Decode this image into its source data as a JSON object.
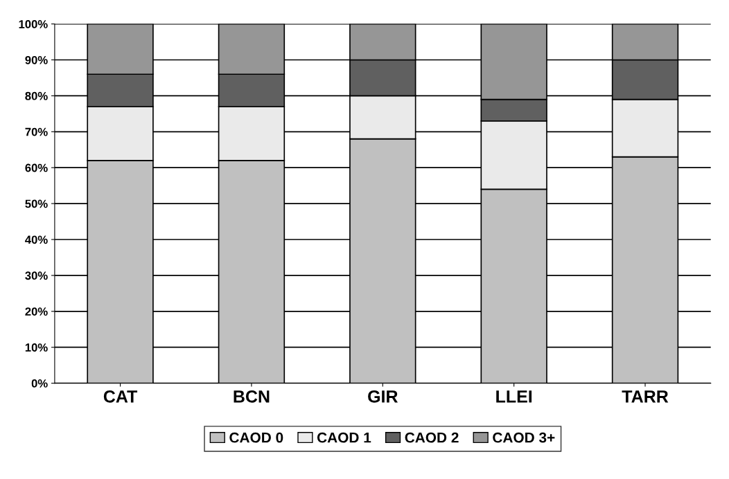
{
  "chart_data": {
    "type": "bar",
    "stacked": true,
    "categories": [
      "CAT",
      "BCN",
      "GIR",
      "LLEI",
      "TARR"
    ],
    "series": [
      {
        "name": "CAOD 0",
        "color": "#c0c0c0",
        "values": [
          62,
          62,
          68,
          54,
          63
        ]
      },
      {
        "name": "CAOD 1",
        "color": "#eaeaea",
        "values": [
          15,
          15,
          12,
          19,
          16
        ]
      },
      {
        "name": "CAOD 2",
        "color": "#606060",
        "values": [
          9,
          9,
          10,
          6,
          11
        ]
      },
      {
        "name": "CAOD 3+",
        "color": "#969696",
        "values": [
          14,
          14,
          10,
          21,
          10
        ]
      }
    ],
    "ylim": [
      0,
      100
    ],
    "yticks": [
      {
        "value": 0,
        "label": "0%"
      },
      {
        "value": 10,
        "label": "10%"
      },
      {
        "value": 20,
        "label": "20%"
      },
      {
        "value": 30,
        "label": "30%"
      },
      {
        "value": 40,
        "label": "40%"
      },
      {
        "value": 50,
        "label": "50%"
      },
      {
        "value": 60,
        "label": "60%"
      },
      {
        "value": 70,
        "label": "70%"
      },
      {
        "value": 80,
        "label": "80%"
      },
      {
        "value": 90,
        "label": "90%"
      },
      {
        "value": 100,
        "label": "100%"
      }
    ],
    "grid": "y",
    "legend": "bottom"
  }
}
